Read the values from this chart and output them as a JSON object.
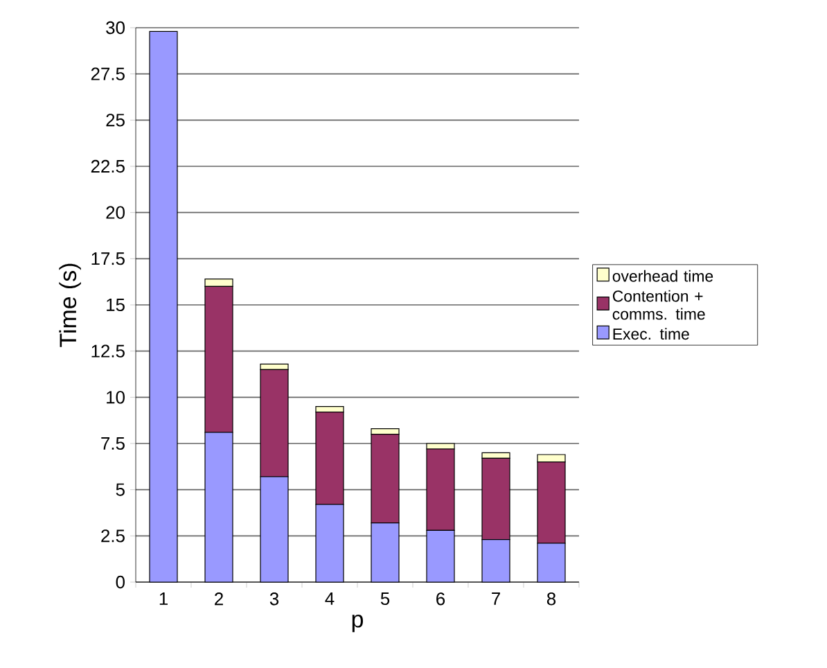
{
  "chart_data": {
    "type": "bar",
    "stacked": true,
    "xlabel": "p",
    "ylabel": "Time (s)",
    "categories": [
      "1",
      "2",
      "3",
      "4",
      "5",
      "6",
      "7",
      "8"
    ],
    "series": [
      {
        "name": "Exec. time",
        "color": "#9999ff",
        "values": [
          29.8,
          8.1,
          5.7,
          4.2,
          3.2,
          2.8,
          2.3,
          2.1
        ]
      },
      {
        "name": "Contention + comms. time",
        "color": "#993366",
        "values": [
          0,
          7.9,
          5.8,
          5.0,
          4.8,
          4.4,
          4.4,
          4.4
        ]
      },
      {
        "name": "overhead time",
        "color": "#ffffcc",
        "values": [
          0,
          0.4,
          0.3,
          0.3,
          0.3,
          0.3,
          0.3,
          0.4
        ]
      }
    ],
    "ylim": [
      0,
      30
    ],
    "yticks": [
      0,
      2.5,
      5,
      7.5,
      10,
      12.5,
      15,
      17.5,
      20,
      22.5,
      25,
      27.5,
      30
    ],
    "grid": "y",
    "legend": "right"
  }
}
